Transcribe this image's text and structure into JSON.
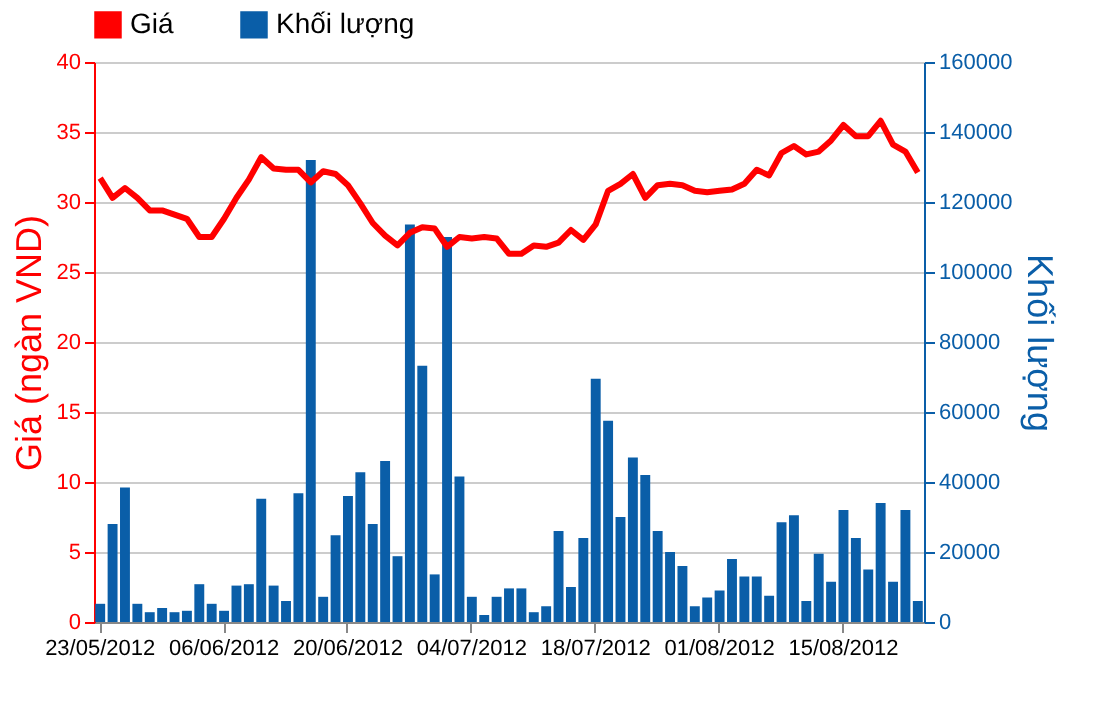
{
  "chart_data": {
    "type": "bar",
    "legend": "top left",
    "grid": "y",
    "ylabel": "Giá (ngàn VND)",
    "y2label": "Khối lượng",
    "categories": [
      "23/05/2012",
      null,
      null,
      null,
      null,
      null,
      null,
      null,
      null,
      null,
      "06/06/2012",
      null,
      null,
      null,
      null,
      null,
      null,
      null,
      null,
      null,
      "20/06/2012",
      null,
      null,
      null,
      null,
      null,
      null,
      null,
      null,
      null,
      "04/07/2012",
      null,
      null,
      null,
      null,
      null,
      null,
      null,
      null,
      null,
      "18/07/2012",
      null,
      null,
      null,
      null,
      null,
      null,
      null,
      null,
      null,
      "01/08/2012",
      null,
      null,
      null,
      null,
      null,
      null,
      null,
      null,
      null,
      "15/08/2012",
      null,
      null,
      null,
      null,
      null,
      null
    ],
    "ylim": [
      0,
      40
    ],
    "yticks": [
      0,
      5,
      10,
      15,
      20,
      25,
      30,
      35,
      40
    ],
    "y2lim": [
      0,
      160000
    ],
    "y2ticks": [
      0,
      20000,
      40000,
      60000,
      80000,
      100000,
      120000,
      140000,
      160000
    ],
    "series": [
      {
        "name": "Giá",
        "type": "line",
        "color": "#ff0000",
        "values": [
          31.7,
          30.3,
          31.0,
          30.3,
          29.4,
          29.4,
          29.1,
          28.8,
          27.5,
          27.5,
          28.8,
          30.3,
          31.6,
          33.2,
          32.4,
          32.3,
          32.3,
          31.4,
          32.2,
          32.0,
          31.2,
          29.9,
          28.5,
          27.6,
          26.9,
          27.8,
          28.2,
          28.1,
          26.8,
          27.5,
          27.4,
          27.5,
          27.4,
          26.3,
          26.3,
          26.9,
          26.8,
          27.1,
          28.0,
          27.3,
          28.4,
          30.8,
          31.3,
          32.0,
          30.3,
          31.2,
          31.3,
          31.2,
          30.8,
          30.7,
          30.8,
          30.9,
          31.3,
          32.3,
          31.9,
          33.5,
          34.0,
          33.4,
          33.6,
          34.4,
          35.5,
          34.7,
          34.7,
          35.8,
          34.1,
          33.6,
          32.1
        ]
      },
      {
        "name": "Khối lượng",
        "axis": "y2",
        "color": "#0a5ea8",
        "values": [
          5200,
          28000,
          38400,
          5200,
          2800,
          4000,
          2800,
          3200,
          10800,
          5200,
          3200,
          10400,
          10800,
          35200,
          10400,
          6000,
          36800,
          132000,
          7200,
          24800,
          36000,
          42800,
          28000,
          46000,
          18800,
          113600,
          73200,
          13600,
          110000,
          41600,
          7200,
          2000,
          7200,
          9600,
          9600,
          2800,
          4500,
          26000,
          10000,
          24000,
          69500,
          57500,
          30000,
          47000,
          42000,
          26000,
          20000,
          16000,
          4500,
          7000,
          9000,
          18000,
          13000,
          13000,
          7500,
          28500,
          30500,
          6000,
          19500,
          11500,
          32000,
          24000,
          15000,
          34000,
          11500,
          32000,
          6000
        ]
      }
    ]
  }
}
